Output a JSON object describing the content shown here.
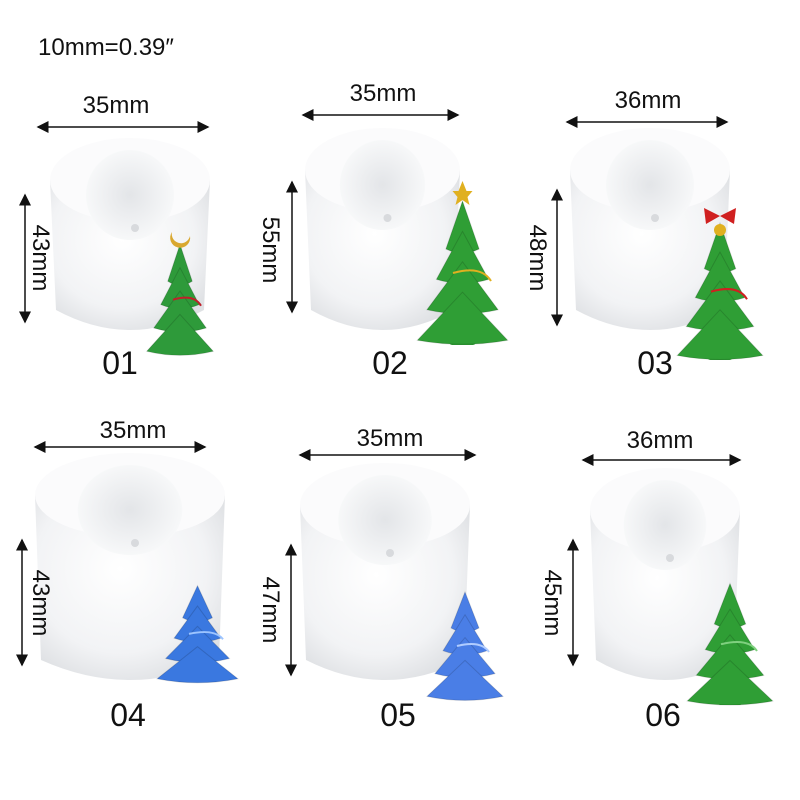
{
  "scale_note": "10mm=0.39″",
  "items": [
    {
      "number": "01",
      "width": "35mm",
      "height": "43mm",
      "tree_color": "#2e9a3a",
      "tree_accent": "#c0202a",
      "decor": "moon"
    },
    {
      "number": "02",
      "width": "35mm",
      "height": "55mm",
      "tree_color": "#2f9e35",
      "tree_accent": "#e0b020",
      "decor": "star"
    },
    {
      "number": "03",
      "width": "36mm",
      "height": "48mm",
      "tree_color": "#2f9e35",
      "tree_accent": "#d02020",
      "decor": "bow"
    },
    {
      "number": "04",
      "width": "35mm",
      "height": "43mm",
      "tree_color": "#3a78e0",
      "tree_accent": "#9cc4ff",
      "decor": "none"
    },
    {
      "number": "05",
      "width": "35mm",
      "height": "47mm",
      "tree_color": "#4a7ee6",
      "tree_accent": "#b0ccff",
      "decor": "none"
    },
    {
      "number": "06",
      "width": "36mm",
      "height": "45mm",
      "tree_color": "#2f9e35",
      "tree_accent": "#7fd07f",
      "decor": "none"
    }
  ]
}
